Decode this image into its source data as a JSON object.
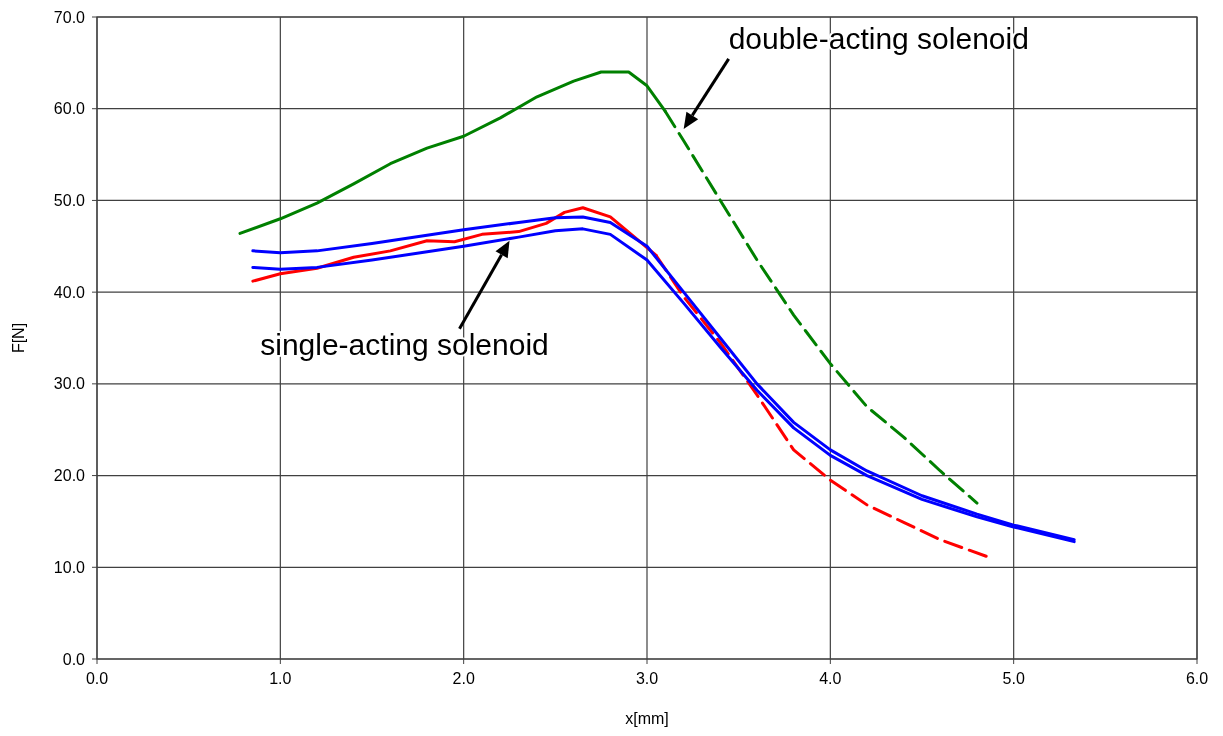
{
  "chart_data": {
    "type": "line",
    "xlabel": "x[mm]",
    "ylabel": "F[N]",
    "xlim": [
      0,
      6
    ],
    "ylim": [
      0,
      70
    ],
    "xticks": [
      {
        "value": 0,
        "label": "0.0"
      },
      {
        "value": 1,
        "label": "1.0"
      },
      {
        "value": 2,
        "label": "2.0"
      },
      {
        "value": 3,
        "label": "3.0"
      },
      {
        "value": 4,
        "label": "4.0"
      },
      {
        "value": 5,
        "label": "5.0"
      },
      {
        "value": 6,
        "label": "6.0"
      }
    ],
    "yticks": [
      {
        "value": 0,
        "label": "0.0"
      },
      {
        "value": 10,
        "label": "10.0"
      },
      {
        "value": 20,
        "label": "20.0"
      },
      {
        "value": 30,
        "label": "30.0"
      },
      {
        "value": 40,
        "label": "40.0"
      },
      {
        "value": 50,
        "label": "50.0"
      },
      {
        "value": 60,
        "label": "60.0"
      },
      {
        "value": 70,
        "label": "70.0"
      }
    ],
    "grid": true,
    "marker": "none",
    "series": [
      {
        "color": "#008000",
        "line_style": "solid",
        "x": [
          0.78,
          1.0,
          1.2,
          1.4,
          1.6,
          1.8,
          2.0,
          2.2,
          2.4,
          2.6,
          2.75,
          2.9,
          3.0,
          3.1
        ],
        "values": [
          46.4,
          48.0,
          49.7,
          51.8,
          54.0,
          55.7,
          57.0,
          59.0,
          61.3,
          63.0,
          64.0,
          64.0,
          62.5,
          59.7
        ]
      },
      {
        "color": "#008000",
        "line_style": "dashed",
        "x": [
          3.1,
          3.2,
          3.4,
          3.6,
          3.8,
          4.0,
          4.2,
          4.4,
          4.6,
          4.8
        ],
        "values": [
          59.7,
          56.5,
          50.0,
          43.5,
          37.5,
          32.2,
          27.5,
          24.2,
          20.5,
          17.0
        ]
      },
      {
        "color": "#ff0000",
        "line_style": "solid",
        "x": [
          0.85,
          1.0,
          1.2,
          1.4,
          1.6,
          1.8,
          1.95,
          2.1,
          2.3,
          2.45,
          2.55,
          2.65,
          2.8,
          2.95,
          3.05
        ],
        "values": [
          41.2,
          42.0,
          42.6,
          43.8,
          44.5,
          45.6,
          45.5,
          46.3,
          46.6,
          47.5,
          48.7,
          49.2,
          48.2,
          45.7,
          44.0
        ]
      },
      {
        "color": "#ff0000",
        "line_style": "dashed",
        "x": [
          3.05,
          3.2,
          3.4,
          3.6,
          3.8,
          4.0,
          4.2,
          4.4,
          4.6,
          4.85
        ],
        "values": [
          44.0,
          39.5,
          34.5,
          28.8,
          22.8,
          19.5,
          16.8,
          14.9,
          13.0,
          11.2
        ]
      },
      {
        "color": "#0000ff",
        "line_style": "solid",
        "x": [
          0.85,
          1.0,
          1.2,
          1.5,
          2.0,
          2.3,
          2.5,
          2.65,
          2.8,
          3.0,
          3.2,
          3.4,
          3.6,
          3.8,
          4.0,
          4.2,
          4.5,
          4.8,
          5.0,
          5.33
        ],
        "values": [
          44.5,
          44.3,
          44.5,
          45.3,
          46.8,
          47.6,
          48.1,
          48.2,
          47.6,
          45.0,
          40.0,
          35.0,
          30.0,
          25.8,
          22.8,
          20.5,
          17.8,
          15.8,
          14.6,
          13.0
        ]
      },
      {
        "color": "#0000ff",
        "line_style": "solid",
        "x": [
          0.85,
          1.0,
          1.2,
          1.5,
          2.0,
          2.3,
          2.5,
          2.65,
          2.8,
          3.0,
          3.2,
          3.4,
          3.6,
          3.8,
          4.0,
          4.2,
          4.5,
          4.8,
          5.0,
          5.33
        ],
        "values": [
          42.7,
          42.5,
          42.7,
          43.5,
          45.0,
          46.0,
          46.7,
          46.9,
          46.3,
          43.5,
          38.8,
          34.0,
          29.3,
          25.2,
          22.2,
          20.0,
          17.4,
          15.5,
          14.4,
          12.8
        ]
      }
    ],
    "annotations": [
      {
        "text": "double-acting solenoid",
        "x": 3.2,
        "y": 57.8
      },
      {
        "text": "single-acting solenoid",
        "x": 2.25,
        "y": 45.6
      }
    ]
  }
}
